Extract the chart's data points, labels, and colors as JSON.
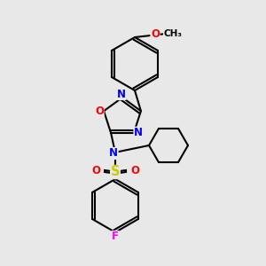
{
  "bg_color": "#e8e8e8",
  "bond_color": "#000000",
  "N_color": "#0000ff",
  "O_color": "#ff0000",
  "S_color": "#cccc00",
  "F_color": "#ff00ff",
  "lw": 1.5,
  "fs": 8.5,
  "figsize": [
    3.0,
    3.0
  ],
  "dpi": 100,
  "xlim": [
    0,
    300
  ],
  "ylim": [
    0,
    300
  ]
}
